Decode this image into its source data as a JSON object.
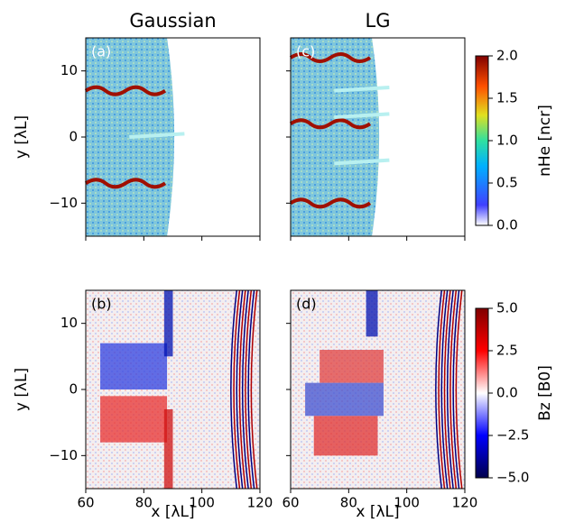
{
  "chart_data": [
    {
      "type": "heatmap",
      "title": "Gaussian",
      "label": "(a)",
      "ylabel": "y [λL]",
      "xlim": [
        60,
        120
      ],
      "xticks": [
        60,
        80,
        100,
        120
      ],
      "xticklabels": false,
      "ylim": [
        -15,
        15
      ],
      "yticks": [
        {
          "value": -10,
          "label": "−10"
        },
        0,
        10
      ],
      "yticklabels": true
    },
    {
      "type": "heatmap",
      "title": "LG",
      "label": "(c)",
      "xlim": [
        60,
        120
      ],
      "xticks": [
        60,
        80,
        100,
        120
      ],
      "xticklabels": false,
      "ylim": [
        -15,
        15
      ],
      "yticks": [
        {
          "value": -10,
          "label": "−10"
        },
        0,
        10
      ],
      "yticklabels": false,
      "colorbar": {
        "label": "nHe [ncr]",
        "colormap": "jet",
        "lim": [
          0,
          2
        ],
        "ticks": [
          {
            "value": 0,
            "label": "0.0"
          },
          {
            "value": 0.5,
            "label": "0.5"
          },
          {
            "value": 1,
            "label": "1.0"
          },
          {
            "value": 1.5,
            "label": "1.5"
          },
          {
            "value": 2,
            "label": "2.0"
          }
        ]
      }
    },
    {
      "type": "heatmap",
      "label": "(b)",
      "ylabel": "y [λL]",
      "xlabel": "x [λL]",
      "xlim": [
        60,
        120
      ],
      "xticks": [
        60,
        80,
        100,
        120
      ],
      "xticklabels": true,
      "ylim": [
        -15,
        15
      ],
      "yticks": [
        {
          "value": -10,
          "label": "−10"
        },
        0,
        10
      ],
      "yticklabels": true
    },
    {
      "type": "heatmap",
      "label": "(d)",
      "xlabel": "x [λL]",
      "xlim": [
        60,
        120
      ],
      "xticks": [
        60,
        80,
        100,
        120
      ],
      "xticklabels": true,
      "ylim": [
        -15,
        15
      ],
      "yticks": [
        {
          "value": -10,
          "label": "−10"
        },
        0,
        10
      ],
      "yticklabels": false,
      "colorbar": {
        "label": "Bz [B0]",
        "colormap": "seismic",
        "lim": [
          -5,
          5
        ],
        "ticks": [
          {
            "value": -5,
            "label": "−5.0"
          },
          {
            "value": -2.5,
            "label": "−2.5"
          },
          {
            "value": 0,
            "label": "0.0"
          },
          {
            "value": 2.5,
            "label": "2.5"
          },
          {
            "value": 5,
            "label": "5.0"
          }
        ]
      }
    }
  ]
}
